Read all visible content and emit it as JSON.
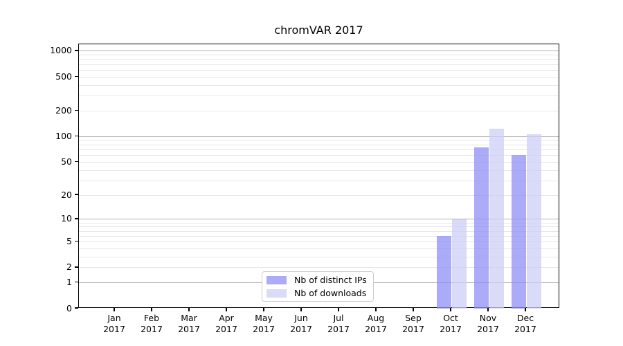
{
  "chart_data": {
    "type": "bar",
    "title": "chromVAR 2017",
    "categories": [
      "Jan 2017",
      "Feb 2017",
      "Mar 2017",
      "Apr 2017",
      "May 2017",
      "Jun 2017",
      "Jul 2017",
      "Aug 2017",
      "Sep 2017",
      "Oct 2017",
      "Nov 2017",
      "Dec 2017"
    ],
    "series": [
      {
        "name": "Nb of distinct IPs",
        "color": "#908ff6",
        "alpha": 0.75,
        "values": [
          0,
          0,
          0,
          0,
          0,
          0,
          0,
          0,
          0,
          6,
          75,
          61
        ]
      },
      {
        "name": "Nb of downloads",
        "color": "#cecdf7",
        "alpha": 0.75,
        "values": [
          0,
          0,
          0,
          0,
          0,
          0,
          0,
          0,
          0,
          10,
          125,
          107
        ]
      }
    ],
    "xlabel": "",
    "ylabel": "",
    "y_axis": {
      "scale": "log1p",
      "ylim": [
        0,
        1200
      ],
      "tick_labels": [
        0,
        1,
        2,
        5,
        10,
        20,
        50,
        100,
        200,
        500,
        1000
      ],
      "major_gridlines": [
        1,
        10,
        100,
        1000
      ],
      "minor_gridlines": [
        2,
        3,
        4,
        5,
        6,
        7,
        8,
        9,
        20,
        30,
        40,
        50,
        60,
        70,
        80,
        90,
        200,
        300,
        400,
        500,
        600,
        700,
        800,
        900
      ]
    },
    "grid": {
      "on": true,
      "major_color": "#b0b0b0",
      "minor_color": "#e7e7e7"
    },
    "legend": {
      "position": "lower center",
      "border_color": "#cccccc"
    },
    "spine_color": "#000000",
    "text_color": "#000000"
  }
}
